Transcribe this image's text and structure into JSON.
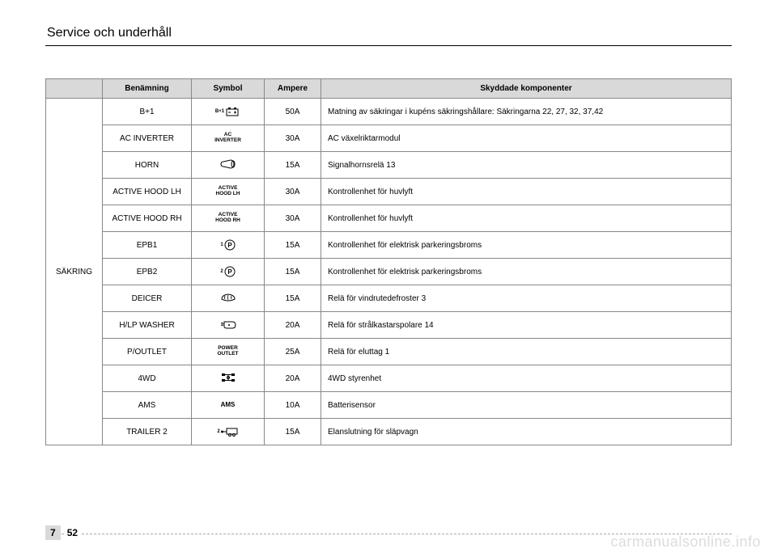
{
  "header": {
    "section_title": "Service och underhåll"
  },
  "table": {
    "columns": [
      "Benämning",
      "Symbol",
      "Ampere",
      "Skyddade komponenter"
    ],
    "row_group_label": "SÄKRING",
    "rows": [
      {
        "name": "B+1",
        "symbol_type": "battery",
        "symbol_text": "B+1",
        "ampere": "50A",
        "desc": "Matning av säkringar i kupéns säkringshållare: Säkringarna 22, 27, 32, 37,42"
      },
      {
        "name": "AC INVERTER",
        "symbol_type": "text",
        "symbol_text": "AC\nINVERTER",
        "ampere": "30A",
        "desc": "AC växelriktarmodul"
      },
      {
        "name": "HORN",
        "symbol_type": "horn",
        "symbol_text": "",
        "ampere": "15A",
        "desc": "Signalhornsrelä 13"
      },
      {
        "name": "ACTIVE HOOD LH",
        "symbol_type": "text",
        "symbol_text": "ACTIVE\nHOOD LH",
        "ampere": "30A",
        "desc": "Kontrollenhet för huvlyft"
      },
      {
        "name": "ACTIVE HOOD RH",
        "symbol_type": "text",
        "symbol_text": "ACTIVE\nHOOD RH",
        "ampere": "30A",
        "desc": "Kontrollenhet för huvlyft"
      },
      {
        "name": "EPB1",
        "symbol_type": "pcircle",
        "symbol_text": "1",
        "ampere": "15A",
        "desc": "Kontrollenhet för elektrisk parkeringsbroms"
      },
      {
        "name": "EPB2",
        "symbol_type": "pcircle",
        "symbol_text": "2",
        "ampere": "15A",
        "desc": "Kontrollenhet för elektrisk parkeringsbroms"
      },
      {
        "name": "DEICER",
        "symbol_type": "deicer",
        "symbol_text": "",
        "ampere": "15A",
        "desc": "Relä för vindrutedefroster 3"
      },
      {
        "name": "H/LP WASHER",
        "symbol_type": "washer",
        "symbol_text": "",
        "ampere": "20A",
        "desc": "Relä för strålkastarspolare 14"
      },
      {
        "name": "P/OUTLET",
        "symbol_type": "text",
        "symbol_text": "POWER\nOUTLET",
        "ampere": "25A",
        "desc": "Relä för eluttag 1"
      },
      {
        "name": "4WD",
        "symbol_type": "4wd",
        "symbol_text": "",
        "ampere": "20A",
        "desc": "4WD styrenhet"
      },
      {
        "name": "AMS",
        "symbol_type": "text_single",
        "symbol_text": "AMS",
        "ampere": "10A",
        "desc": "Batterisensor"
      },
      {
        "name": "TRAILER 2",
        "symbol_type": "trailer",
        "symbol_text": "2",
        "ampere": "15A",
        "desc": "Elanslutning för släpvagn"
      }
    ]
  },
  "footer": {
    "chapter": "7",
    "page": "52"
  },
  "watermark": "carmanualsonline.info"
}
